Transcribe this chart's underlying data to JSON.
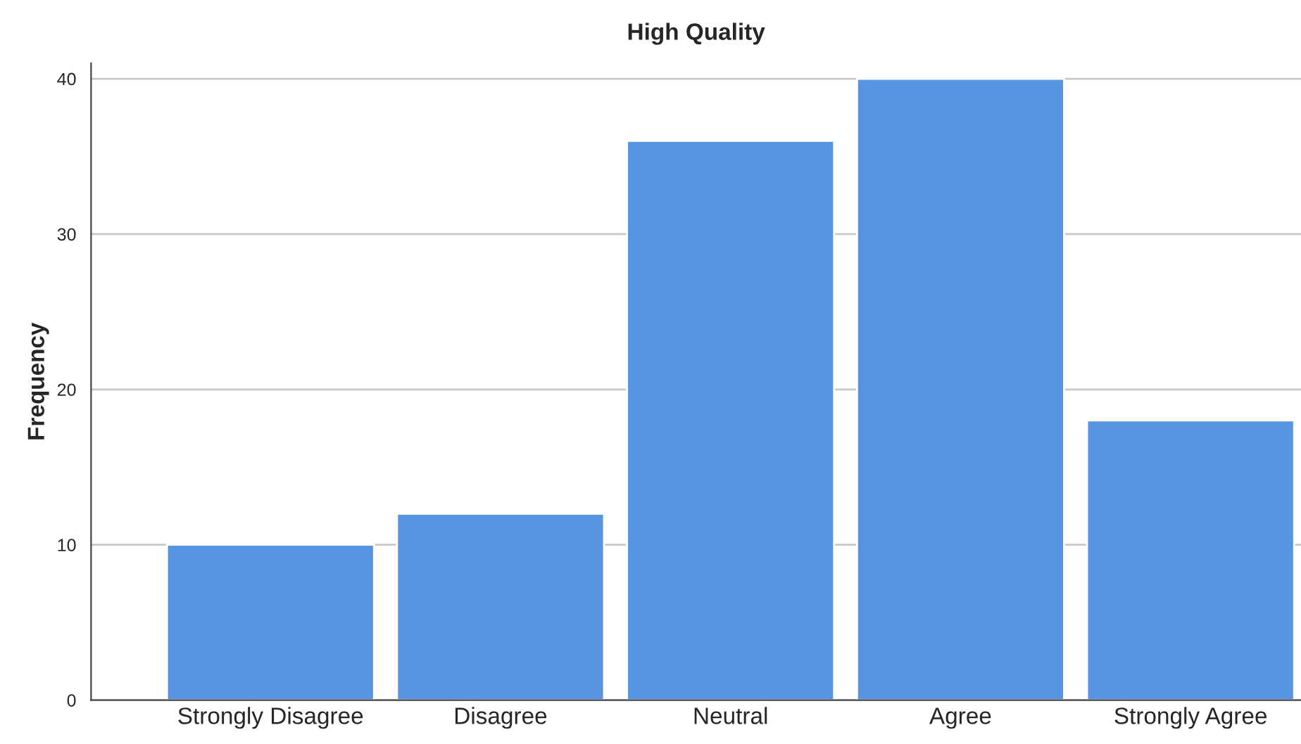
{
  "chart_data": {
    "type": "bar",
    "title": "High Quality",
    "ylabel": "Frequency",
    "categories": [
      "Strongly Disagree",
      "Disagree",
      "Neutral",
      "Agree",
      "Strongly Agree"
    ],
    "values": [
      10,
      12,
      36,
      40,
      18
    ],
    "color": "#5795e0",
    "ylim": [
      0,
      41
    ],
    "yticks": [
      0,
      10,
      20,
      30,
      40
    ],
    "grid": "y",
    "legend": false
  }
}
